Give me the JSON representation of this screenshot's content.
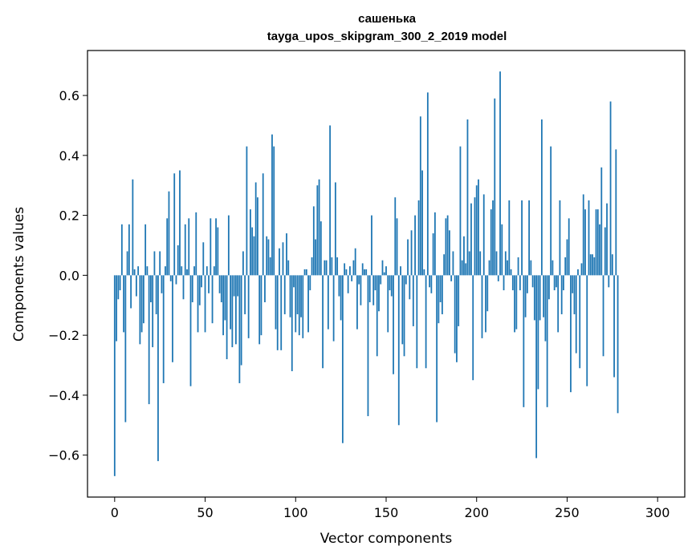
{
  "chart_data": {
    "type": "bar",
    "title": "сашенька",
    "subtitle": "tayga_upos_skipgram_300_2_2019 model",
    "xlabel": "Vector components",
    "ylabel": "Components values",
    "xlim": [
      -15,
      315
    ],
    "ylim": [
      -0.74,
      0.75
    ],
    "xticks": [
      0,
      50,
      100,
      150,
      200,
      250,
      300
    ],
    "yticks": [
      -0.6,
      -0.4,
      -0.2,
      0.0,
      0.2,
      0.4,
      0.6
    ],
    "ytick_labels": [
      "−0.6",
      "−0.4",
      "−0.2",
      "0.0",
      "0.2",
      "0.4",
      "0.6"
    ],
    "bar_color": "#1f77b4",
    "grid": false,
    "legend": "none",
    "values": [
      -0.67,
      -0.22,
      -0.08,
      -0.05,
      0.17,
      -0.19,
      -0.49,
      0.08,
      0.17,
      -0.11,
      0.32,
      0.02,
      -0.07,
      0.03,
      -0.23,
      -0.19,
      -0.16,
      0.17,
      0.03,
      -0.43,
      -0.09,
      -0.24,
      0.08,
      -0.13,
      -0.62,
      0.08,
      -0.06,
      -0.36,
      0.03,
      0.19,
      0.28,
      -0.02,
      -0.29,
      0.34,
      -0.03,
      0.1,
      0.35,
      0.03,
      -0.08,
      0.17,
      0.02,
      0.19,
      -0.37,
      -0.09,
      0.03,
      0.21,
      -0.19,
      -0.1,
      -0.04,
      0.11,
      -0.19,
      0.03,
      -0.06,
      0.19,
      -0.16,
      0.03,
      0.19,
      0.16,
      -0.06,
      -0.09,
      -0.2,
      -0.15,
      -0.28,
      0.2,
      -0.18,
      -0.24,
      -0.07,
      -0.23,
      -0.07,
      -0.36,
      -0.3,
      0.08,
      -0.13,
      0.43,
      -0.21,
      0.22,
      0.16,
      0.13,
      0.31,
      0.26,
      -0.23,
      -0.2,
      0.34,
      -0.09,
      0.13,
      0.12,
      0.06,
      0.47,
      0.43,
      -0.18,
      -0.25,
      0.09,
      -0.25,
      0.11,
      -0.13,
      0.14,
      0.05,
      -0.14,
      -0.32,
      -0.04,
      -0.19,
      -0.13,
      -0.2,
      -0.14,
      -0.21,
      0.02,
      0.02,
      -0.19,
      -0.05,
      0.06,
      0.23,
      0.12,
      0.3,
      0.32,
      0.18,
      -0.31,
      0.05,
      0.05,
      -0.18,
      0.5,
      0.06,
      -0.22,
      0.31,
      0.06,
      -0.07,
      -0.15,
      -0.56,
      0.04,
      0.02,
      -0.06,
      0.03,
      -0.02,
      0.05,
      0.09,
      -0.18,
      -0.03,
      -0.1,
      0.04,
      0.02,
      0.02,
      -0.47,
      -0.09,
      0.2,
      -0.1,
      -0.05,
      -0.27,
      -0.12,
      -0.03,
      0.05,
      0.01,
      0.03,
      -0.19,
      -0.05,
      -0.07,
      -0.33,
      0.26,
      0.19,
      -0.5,
      0.03,
      -0.23,
      -0.27,
      -0.03,
      0.12,
      -0.08,
      0.15,
      -0.17,
      0.2,
      -0.31,
      0.25,
      0.53,
      0.35,
      0.02,
      -0.31,
      0.61,
      -0.04,
      -0.06,
      0.14,
      0.21,
      -0.49,
      -0.16,
      -0.09,
      -0.13,
      0.07,
      0.19,
      0.2,
      0.15,
      -0.02,
      0.08,
      -0.26,
      -0.29,
      -0.17,
      0.43,
      0.05,
      0.13,
      0.04,
      0.52,
      0.08,
      0.24,
      -0.35,
      0.26,
      0.3,
      0.32,
      0.08,
      -0.21,
      0.27,
      -0.19,
      -0.12,
      0.05,
      0.22,
      0.25,
      0.59,
      0.08,
      -0.02,
      0.68,
      0.17,
      -0.05,
      0.08,
      0.05,
      0.25,
      0.02,
      -0.05,
      -0.19,
      -0.18,
      0.06,
      -0.05,
      0.25,
      -0.44,
      -0.14,
      -0.06,
      0.25,
      0.05,
      -0.04,
      -0.15,
      -0.61,
      -0.38,
      -0.15,
      0.52,
      -0.14,
      -0.22,
      -0.44,
      -0.08,
      0.43,
      0.05,
      -0.05,
      -0.04,
      -0.19,
      0.25,
      -0.13,
      -0.05,
      0.06,
      0.12,
      0.19,
      -0.39,
      -0.06,
      -0.13,
      -0.26,
      0.02,
      -0.31,
      0.04,
      0.27,
      0.22,
      -0.37,
      0.25,
      0.07,
      0.07,
      0.06,
      0.22,
      0.22,
      0.17,
      0.36,
      -0.27,
      0.16,
      0.24,
      -0.04,
      0.58,
      0.07,
      -0.34,
      0.42,
      -0.46
    ]
  }
}
